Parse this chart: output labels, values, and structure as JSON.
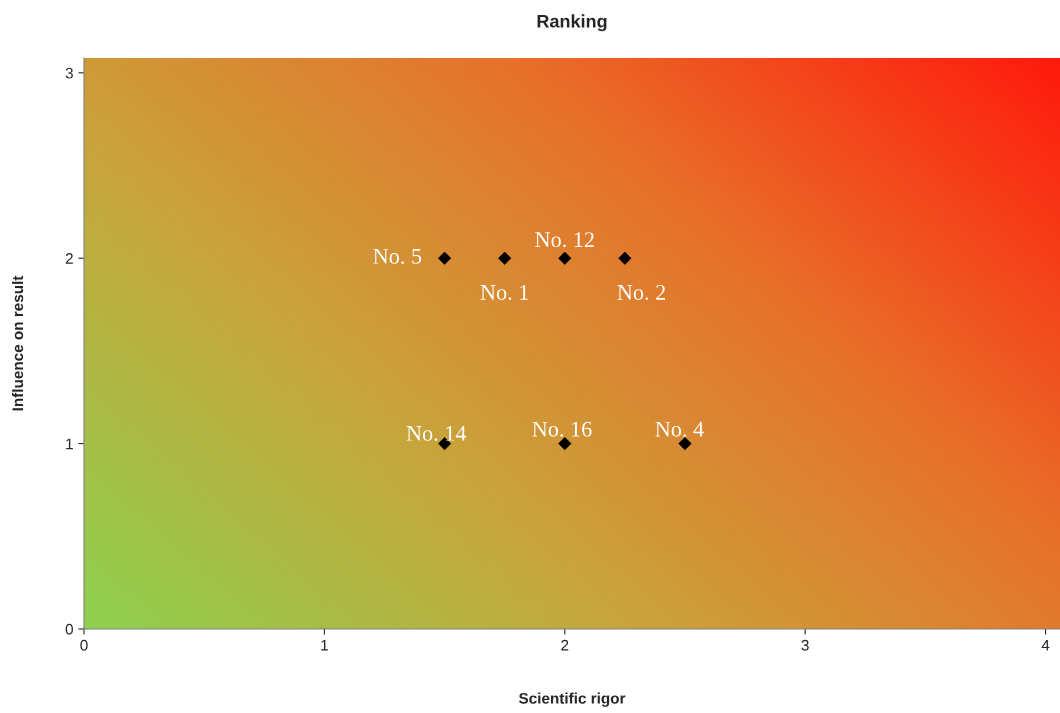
{
  "chart_data": {
    "type": "scatter",
    "title": "Ranking",
    "xlabel": "Scientific rigor",
    "ylabel": "Influence on result",
    "x": [
      1.5,
      1.75,
      2,
      2.25,
      1.5,
      2,
      2.5
    ],
    "series": [
      {
        "color": "#000000",
        "values": [
          2,
          2,
          2,
          2,
          1,
          1,
          1
        ]
      }
    ],
    "annotations": [
      {
        "text": "No. 5",
        "x": 1.5,
        "y": 2
      },
      {
        "text": "No. 1",
        "x": 1.75,
        "y": 2
      },
      {
        "text": "No. 12",
        "x": 2,
        "y": 2
      },
      {
        "text": "No. 2",
        "x": 2.25,
        "y": 2
      },
      {
        "text": "No. 14",
        "x": 1.5,
        "y": 1
      },
      {
        "text": "No. 16",
        "x": 2,
        "y": 1
      },
      {
        "text": "No. 4",
        "x": 2.5,
        "y": 1
      }
    ],
    "marker": "diamond",
    "grid": false,
    "legend": false,
    "xlim": [
      0,
      4.06
    ],
    "ylim": [
      0,
      3.08
    ],
    "xticks": [
      0,
      1,
      2,
      3,
      4
    ],
    "yticks": [
      0,
      1,
      2,
      3
    ]
  }
}
